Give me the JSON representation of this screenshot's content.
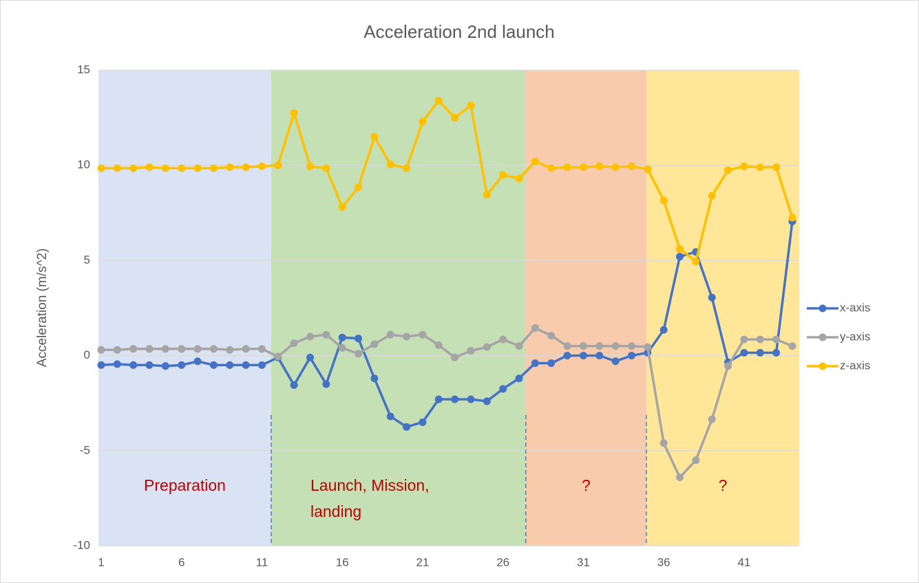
{
  "chart_data": {
    "type": "line",
    "title": "Acceleration 2nd launch",
    "y_label": "Acceleration (m/s^2)",
    "x": [
      1,
      2,
      3,
      4,
      5,
      6,
      7,
      8,
      9,
      10,
      11,
      12,
      13,
      14,
      15,
      16,
      17,
      18,
      19,
      20,
      21,
      22,
      23,
      24,
      25,
      26,
      27,
      28,
      29,
      30,
      31,
      32,
      33,
      34,
      35,
      36,
      37,
      38,
      39,
      40,
      41,
      42,
      43,
      44
    ],
    "xlim": [
      0.83,
      44.43
    ],
    "xticks": [
      1,
      6,
      11,
      16,
      21,
      26,
      31,
      36,
      41
    ],
    "ylim": [
      -10,
      15
    ],
    "yticks": [
      -10,
      -5,
      0,
      5,
      10,
      15
    ],
    "grid": true,
    "legend": "right",
    "regions": [
      {
        "label": [
          "Preparation"
        ],
        "from": 0.83,
        "to": 11.58,
        "color": "#dae3f3"
      },
      {
        "label": [
          "Launch, Mission,",
          "landing"
        ],
        "from": 11.58,
        "to": 27.42,
        "color": "#c5e0b4"
      },
      {
        "label": [
          "?"
        ],
        "from": 27.42,
        "to": 34.92,
        "color": "#f8cbad"
      },
      {
        "label": [
          "?"
        ],
        "from": 34.92,
        "to": 44.43,
        "color": "#ffe699"
      }
    ],
    "series": [
      {
        "name": "x-axis",
        "color": "#4472c4",
        "values": [
          -0.5,
          -0.45,
          -0.5,
          -0.5,
          -0.55,
          -0.5,
          -0.3,
          -0.5,
          -0.5,
          -0.5,
          -0.5,
          -0.1,
          -1.55,
          -0.1,
          -1.5,
          0.95,
          0.9,
          -1.2,
          -3.2,
          -3.75,
          -3.5,
          -2.3,
          -2.3,
          -2.3,
          -2.4,
          -1.75,
          -1.2,
          -0.4,
          -0.4,
          0,
          0,
          0,
          -0.3,
          0,
          0.15,
          1.35,
          5.2,
          5.45,
          3.05,
          -0.35,
          0.15,
          0.15,
          0.15,
          7.05
        ]
      },
      {
        "name": "y-axis",
        "color": "#a5a5a5",
        "values": [
          0.3,
          0.3,
          0.35,
          0.35,
          0.35,
          0.35,
          0.35,
          0.35,
          0.3,
          0.35,
          0.35,
          -0.05,
          0.65,
          1.0,
          1.1,
          0.4,
          0.1,
          0.6,
          1.1,
          1.0,
          1.1,
          0.55,
          -0.1,
          0.25,
          0.45,
          0.85,
          0.5,
          1.45,
          1.05,
          0.5,
          0.5,
          0.5,
          0.5,
          0.5,
          0.45,
          -4.6,
          -6.4,
          -5.5,
          -3.35,
          -0.55,
          0.85,
          0.85,
          0.85,
          0.5
        ]
      },
      {
        "name": "z-axis",
        "color": "#ffc000",
        "values": [
          9.85,
          9.85,
          9.85,
          9.9,
          9.85,
          9.85,
          9.85,
          9.85,
          9.9,
          9.9,
          9.95,
          10.0,
          12.75,
          9.95,
          9.85,
          7.8,
          8.85,
          11.5,
          10.05,
          9.85,
          12.3,
          13.4,
          12.5,
          13.15,
          8.45,
          9.5,
          9.3,
          10.2,
          9.85,
          9.9,
          9.9,
          9.95,
          9.9,
          9.95,
          9.8,
          8.15,
          5.6,
          4.95,
          8.4,
          9.75,
          9.95,
          9.9,
          9.9,
          7.25
        ]
      }
    ]
  }
}
